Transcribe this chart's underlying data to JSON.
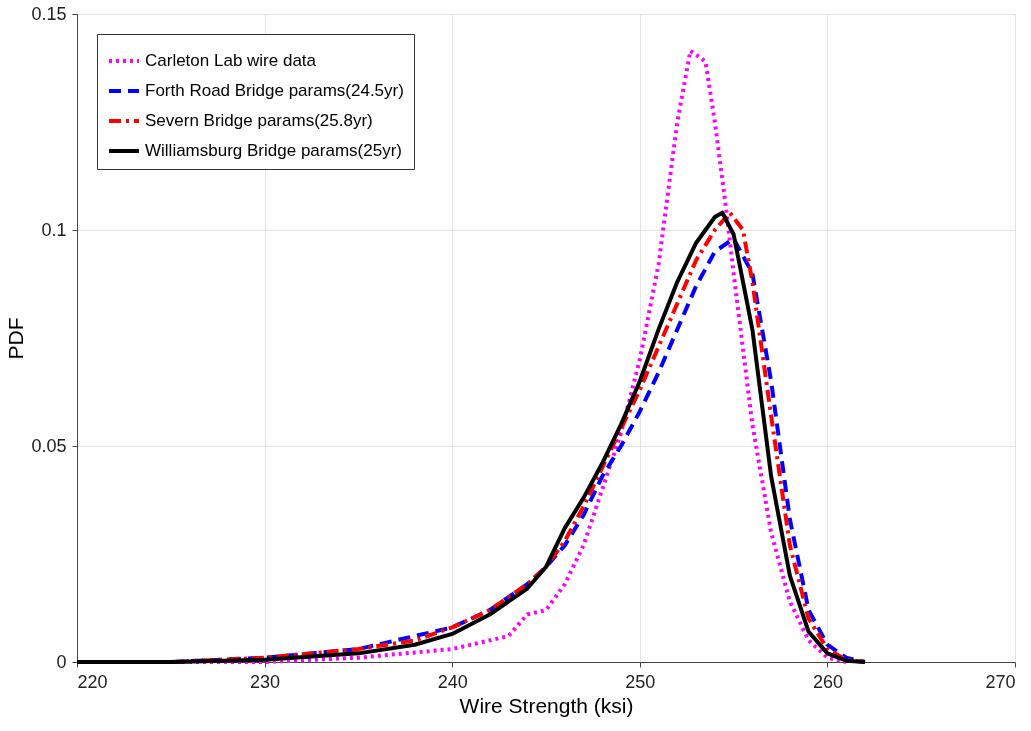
{
  "chart_data": {
    "type": "line",
    "xlabel": "Wire Strength (ksi)",
    "ylabel": "PDF",
    "xlim": [
      220,
      270
    ],
    "xticks": [
      220,
      230,
      240,
      250,
      260,
      270
    ],
    "ylim": [
      0,
      0.15
    ],
    "yticks": [
      0,
      0.05,
      0.1,
      0.15
    ],
    "grid": true,
    "legend": "top left",
    "marker": "none",
    "series": [
      {
        "name": "Carleton Lab wire data",
        "color": "#ff00ff",
        "line_style": "dotted",
        "x": [
          220,
          225,
          230,
          235,
          240,
          242,
          243,
          244,
          245,
          246,
          247,
          248,
          249,
          250,
          251,
          252,
          252.7,
          253.5,
          254,
          254.6,
          255,
          256,
          257,
          258,
          259,
          260,
          261
        ],
        "values": [
          0,
          0,
          0,
          0.001,
          0.003,
          0.005,
          0.006,
          0.011,
          0.012,
          0.018,
          0.027,
          0.04,
          0.053,
          0.07,
          0.092,
          0.125,
          0.1415,
          0.139,
          0.125,
          0.105,
          0.09,
          0.055,
          0.03,
          0.014,
          0.005,
          0.001,
          0
        ]
      },
      {
        "name": "Forth Road Bridge params(24.5yr)",
        "color": "#0000ff",
        "line_style": "dashed",
        "x": [
          220,
          225,
          230,
          235,
          238,
          240,
          242,
          244,
          245,
          246,
          247,
          248,
          249,
          250,
          251,
          252,
          253,
          254,
          255,
          256,
          257,
          258,
          259,
          260,
          261,
          262
        ],
        "values": [
          0,
          0,
          0.001,
          0.003,
          0.006,
          0.008,
          0.012,
          0.018,
          0.022,
          0.027,
          0.034,
          0.043,
          0.05,
          0.058,
          0.067,
          0.077,
          0.087,
          0.095,
          0.098,
          0.09,
          0.065,
          0.033,
          0.012,
          0.004,
          0.001,
          0
        ]
      },
      {
        "name": "Severn Bridge params(25.8yr)",
        "color": "#ff0000",
        "line_style": "dashdot",
        "x": [
          220,
          225,
          230,
          235,
          238,
          240,
          242,
          244,
          245,
          246,
          247,
          248,
          249,
          250,
          251,
          252,
          253,
          254,
          254.8,
          255.5,
          256,
          257,
          258,
          259,
          260,
          261,
          262
        ],
        "values": [
          0,
          0,
          0.001,
          0.003,
          0.005,
          0.008,
          0.012,
          0.018,
          0.022,
          0.028,
          0.036,
          0.045,
          0.054,
          0.063,
          0.073,
          0.083,
          0.093,
          0.1,
          0.104,
          0.1,
          0.088,
          0.057,
          0.027,
          0.01,
          0.003,
          0.0005,
          0
        ]
      },
      {
        "name": "Williamsburg Bridge params(25yr)",
        "color": "#000000",
        "line_style": "solid",
        "x": [
          220,
          225,
          230,
          235,
          238,
          240,
          242,
          244,
          245,
          246,
          247,
          248,
          249,
          250,
          251,
          252,
          253,
          254,
          254.4,
          255,
          256,
          256.5,
          257,
          258,
          259,
          260,
          261,
          262
        ],
        "values": [
          0,
          0,
          0.0005,
          0.002,
          0.004,
          0.0065,
          0.011,
          0.017,
          0.022,
          0.031,
          0.038,
          0.046,
          0.055,
          0.065,
          0.077,
          0.088,
          0.097,
          0.103,
          0.104,
          0.099,
          0.077,
          0.06,
          0.043,
          0.02,
          0.007,
          0.002,
          0.0003,
          0
        ]
      }
    ]
  }
}
